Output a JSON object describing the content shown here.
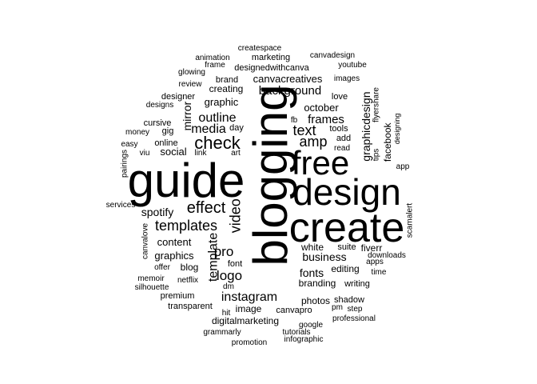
{
  "word_cloud": {
    "color": "#000000",
    "words": [
      {
        "text": "blogging",
        "weight": 1.0
      },
      {
        "text": "guide",
        "weight": 0.9
      },
      {
        "text": "create",
        "weight": 0.82
      },
      {
        "text": "design",
        "weight": 0.75
      },
      {
        "text": "free",
        "weight": 0.7
      },
      {
        "text": "check",
        "weight": 0.35
      },
      {
        "text": "templates",
        "weight": 0.33
      },
      {
        "text": "effect",
        "weight": 0.33
      },
      {
        "text": "instagram",
        "weight": 0.3
      },
      {
        "text": "video",
        "weight": 0.3
      },
      {
        "text": "template",
        "weight": 0.29
      },
      {
        "text": "amp",
        "weight": 0.3
      },
      {
        "text": "text",
        "weight": 0.3
      },
      {
        "text": "pro",
        "weight": 0.28
      },
      {
        "text": "logo",
        "weight": 0.28
      },
      {
        "text": "outline",
        "weight": 0.28
      },
      {
        "text": "media",
        "weight": 0.26
      },
      {
        "text": "background",
        "weight": 0.25
      },
      {
        "text": "graphicdesign",
        "weight": 0.24
      },
      {
        "text": "frames",
        "weight": 0.24
      },
      {
        "text": "business",
        "weight": 0.24
      },
      {
        "text": "fonts",
        "weight": 0.24
      },
      {
        "text": "spotify",
        "weight": 0.24
      },
      {
        "text": "mirror",
        "weight": 0.23
      },
      {
        "text": "graphic",
        "weight": 0.22
      },
      {
        "text": "canvacreatives",
        "weight": 0.22
      },
      {
        "text": "social",
        "weight": 0.22
      },
      {
        "text": "content",
        "weight": 0.22
      },
      {
        "text": "graphics",
        "weight": 0.22
      },
      {
        "text": "october",
        "weight": 0.22
      },
      {
        "text": "facebook",
        "weight": 0.2
      },
      {
        "text": "white",
        "weight": 0.2
      },
      {
        "text": "editing",
        "weight": 0.2
      },
      {
        "text": "branding",
        "weight": 0.2
      },
      {
        "text": "photos",
        "weight": 0.2
      },
      {
        "text": "fiverr",
        "weight": 0.2
      },
      {
        "text": "image",
        "weight": 0.2
      },
      {
        "text": "digitalmarketing",
        "weight": 0.2
      },
      {
        "text": "blog",
        "weight": 0.2
      },
      {
        "text": "creating",
        "weight": 0.2
      },
      {
        "text": "designedwithcanva",
        "weight": 0.19
      },
      {
        "text": "designer",
        "weight": 0.19
      },
      {
        "text": "brand",
        "weight": 0.19
      },
      {
        "text": "cursive",
        "weight": 0.19
      },
      {
        "text": "online",
        "weight": 0.18
      },
      {
        "text": "tools",
        "weight": 0.18
      },
      {
        "text": "shadow",
        "weight": 0.18
      },
      {
        "text": "canvapro",
        "weight": 0.18
      },
      {
        "text": "premium",
        "weight": 0.18
      },
      {
        "text": "transparent",
        "weight": 0.18
      },
      {
        "text": "marketing",
        "weight": 0.18
      },
      {
        "text": "font",
        "weight": 0.18
      },
      {
        "text": "canvalove",
        "weight": 0.17
      },
      {
        "text": "suite",
        "weight": 0.17
      },
      {
        "text": "add",
        "weight": 0.17
      },
      {
        "text": "love",
        "weight": 0.16
      },
      {
        "text": "gig",
        "weight": 0.16
      },
      {
        "text": "day",
        "weight": 0.16
      },
      {
        "text": "writing",
        "weight": 0.16
      },
      {
        "text": "fb",
        "weight": 0.16
      },
      {
        "text": "apps",
        "weight": 0.16
      },
      {
        "text": "time",
        "weight": 0.16
      },
      {
        "text": "google",
        "weight": 0.16
      },
      {
        "text": "grammarly",
        "weight": 0.16
      },
      {
        "text": "promotion",
        "weight": 0.16
      },
      {
        "text": "netflix",
        "weight": 0.16
      },
      {
        "text": "offer",
        "weight": 0.16
      },
      {
        "text": "pm",
        "weight": 0.16
      },
      {
        "text": "dm",
        "weight": 0.16
      },
      {
        "text": "hit",
        "weight": 0.15
      },
      {
        "text": "link",
        "weight": 0.15
      },
      {
        "text": "art",
        "weight": 0.15
      },
      {
        "text": "flyer",
        "weight": 0.15
      },
      {
        "text": "share",
        "weight": 0.15
      },
      {
        "text": "tips",
        "weight": 0.15
      },
      {
        "text": "read",
        "weight": 0.15
      },
      {
        "text": "downloads",
        "weight": 0.15
      },
      {
        "text": "scamalert",
        "weight": 0.15
      },
      {
        "text": "designing",
        "weight": 0.14
      },
      {
        "text": "app",
        "weight": 0.15
      },
      {
        "text": "frame",
        "weight": 0.15
      },
      {
        "text": "animation",
        "weight": 0.15
      },
      {
        "text": "glowing",
        "weight": 0.15
      },
      {
        "text": "review",
        "weight": 0.15
      },
      {
        "text": "designs",
        "weight": 0.15
      },
      {
        "text": "money",
        "weight": 0.15
      },
      {
        "text": "easy",
        "weight": 0.15
      },
      {
        "text": "viu",
        "weight": 0.15
      },
      {
        "text": "pairings",
        "weight": 0.14
      },
      {
        "text": "services",
        "weight": 0.15
      },
      {
        "text": "memoir",
        "weight": 0.15
      },
      {
        "text": "silhouette",
        "weight": 0.15
      },
      {
        "text": "step",
        "weight": 0.15
      },
      {
        "text": "professional",
        "weight": 0.15
      },
      {
        "text": "tutorials",
        "weight": 0.15
      },
      {
        "text": "infographic",
        "weight": 0.15
      },
      {
        "text": "createspace",
        "weight": 0.14
      },
      {
        "text": "canvadesign",
        "weight": 0.14
      },
      {
        "text": "youtube",
        "weight": 0.14
      },
      {
        "text": "images",
        "weight": 0.14
      }
    ]
  }
}
